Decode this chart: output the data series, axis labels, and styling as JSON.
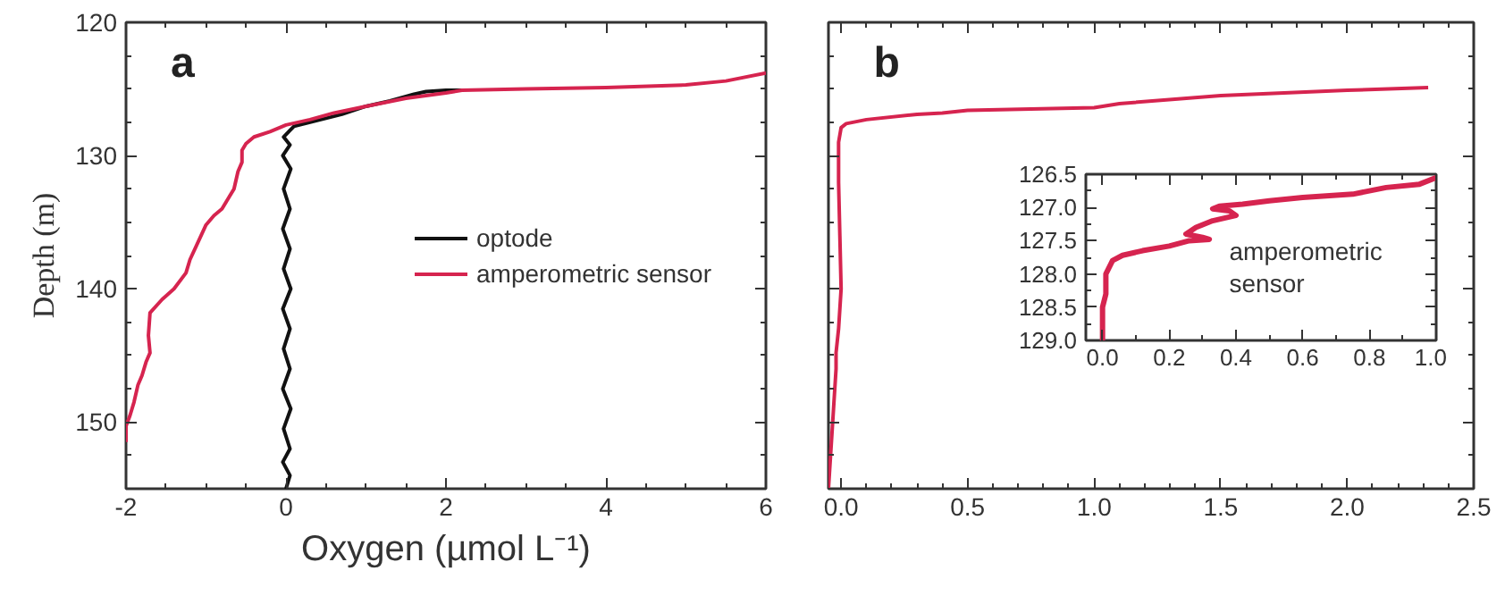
{
  "chart_data": [
    {
      "type": "line",
      "title": "a",
      "xlabel": "Oxygen (µmol L⁻¹)",
      "ylabel": "Depth (m)",
      "xlim": [
        -2,
        6
      ],
      "ylim": [
        155,
        120
      ],
      "xticks": [
        -2,
        0,
        2,
        4,
        6
      ],
      "yticks": [
        120,
        130,
        140,
        150
      ],
      "grid": false,
      "legend": "right",
      "marker": "none",
      "series": [
        {
          "name": "optode",
          "color": "#111111",
          "x": [
            0.0,
            0.05,
            -0.04,
            0.05,
            -0.03,
            0.06,
            -0.04,
            0.05,
            -0.03,
            0.05,
            -0.04,
            0.06,
            -0.03,
            0.05,
            -0.04,
            0.05,
            -0.03,
            0.06,
            -0.04,
            0.05,
            -0.03,
            0.05,
            0.1,
            0.3,
            0.5,
            0.7,
            1.0,
            1.3,
            1.6,
            1.75,
            2.0,
            2.2
          ],
          "values": [
            155,
            154,
            153,
            152,
            150.5,
            149,
            147.5,
            146,
            144.5,
            143,
            141.5,
            140,
            138.5,
            137,
            135.5,
            134,
            132.5,
            131,
            130,
            129.2,
            128.6,
            128.1,
            127.8,
            127.5,
            127.2,
            126.9,
            126.3,
            125.9,
            125.4,
            125.2,
            125.1,
            125.1
          ]
        },
        {
          "name": "amperometric sensor",
          "color": "#d6244f",
          "x": [
            6.0,
            5.5,
            5.0,
            4.0,
            3.0,
            2.2,
            2.0,
            1.5,
            1.0,
            0.6,
            0.3,
            0.0,
            -0.2,
            -0.4,
            -0.5,
            -0.55,
            -0.55,
            -0.6,
            -0.65,
            -0.8,
            -0.9,
            -1.0,
            -1.1,
            -1.2,
            -1.25,
            -1.4,
            -1.55,
            -1.7,
            -1.72,
            -1.7,
            -1.75,
            -1.8,
            -1.85,
            -1.9,
            -1.95,
            -2.0,
            -2.0
          ],
          "values": [
            123.8,
            124.4,
            124.7,
            124.9,
            125.0,
            125.1,
            125.3,
            125.7,
            126.3,
            126.8,
            127.3,
            127.7,
            128.2,
            128.6,
            129.1,
            129.6,
            130.5,
            131.2,
            132.5,
            134.0,
            134.5,
            135.2,
            136.5,
            137.8,
            138.8,
            140.0,
            140.8,
            141.8,
            143.5,
            144.8,
            145.5,
            146.5,
            147.2,
            148.5,
            149.5,
            150.3,
            151.5
          ]
        }
      ]
    },
    {
      "type": "line",
      "title": "b",
      "xlim": [
        -0.05,
        2.5
      ],
      "ylim": [
        155,
        120
      ],
      "tick_labels": "x",
      "xticks": [
        {
          "value": 0,
          "label": "0.0"
        },
        {
          "value": 0.5,
          "label": "0.5"
        },
        {
          "value": 1,
          "label": "1.0"
        },
        {
          "value": 1.5,
          "label": "1.5"
        },
        {
          "value": 2,
          "label": "2.0"
        },
        {
          "value": 2.5,
          "label": "2.5"
        }
      ],
      "yticks": [
        120,
        130,
        140,
        150
      ],
      "grid": false,
      "marker": "none",
      "series": [
        {
          "color": "#d6244f",
          "x": [
            2.32,
            2.0,
            1.5,
            1.1,
            1.0,
            0.5,
            0.4,
            0.3,
            0.1,
            0.02,
            0.0,
            -0.01,
            -0.01,
            -0.005,
            0.0,
            -0.01,
            -0.02,
            -0.02,
            -0.03,
            -0.04,
            -0.05
          ],
          "values": [
            124.9,
            125.1,
            125.5,
            126.1,
            126.4,
            126.6,
            126.8,
            126.9,
            127.3,
            127.6,
            127.9,
            129,
            132,
            136,
            140,
            143,
            144.8,
            146,
            149,
            152,
            155
          ]
        }
      ]
    },
    {
      "type": "line",
      "xlim": [
        -0.05,
        1.0
      ],
      "ylim": [
        129.0,
        126.5
      ],
      "xticks": [
        {
          "value": 0,
          "label": "0.0"
        },
        {
          "value": 0.2,
          "label": "0.2"
        },
        {
          "value": 0.4,
          "label": "0.4"
        },
        {
          "value": 0.6,
          "label": "0.6"
        },
        {
          "value": 0.8,
          "label": "0.8"
        },
        {
          "value": 1.0,
          "label": "1.0"
        }
      ],
      "yticks": [
        {
          "value": 126.5,
          "label": "126.5"
        },
        {
          "value": 127.0,
          "label": "127.0"
        },
        {
          "value": 127.5,
          "label": "127.5"
        },
        {
          "value": 128.0,
          "label": "128.0"
        },
        {
          "value": 128.5,
          "label": "128.5"
        },
        {
          "value": 129.0,
          "label": "129.0"
        }
      ],
      "grid": false,
      "marker": "none",
      "series": [
        {
          "name": "amperometric\nsensor",
          "color": "#d6244f",
          "x": [
            1.0,
            0.95,
            0.85,
            0.75,
            0.6,
            0.5,
            0.42,
            0.35,
            0.33,
            0.38,
            0.4,
            0.33,
            0.28,
            0.25,
            0.3,
            0.32,
            0.26,
            0.2,
            0.12,
            0.06,
            0.03,
            0.02,
            0.01,
            0.01,
            0.0,
            0.0,
            0.0
          ],
          "values": [
            126.55,
            126.65,
            126.7,
            126.8,
            126.85,
            126.9,
            126.95,
            126.98,
            127.02,
            127.05,
            127.12,
            127.2,
            127.3,
            127.4,
            127.45,
            127.48,
            127.5,
            127.58,
            127.65,
            127.72,
            127.8,
            127.9,
            128.0,
            128.3,
            128.5,
            128.8,
            129.0
          ]
        }
      ]
    }
  ]
}
